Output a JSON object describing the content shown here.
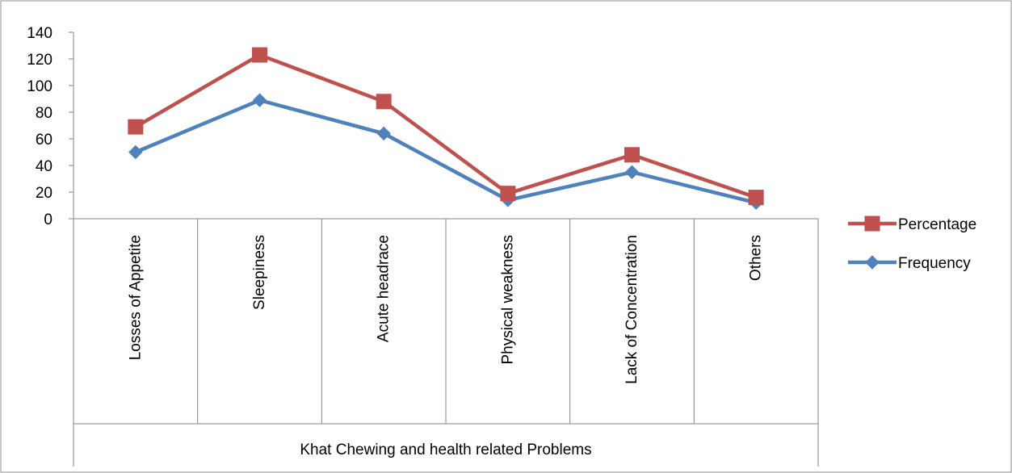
{
  "chart_data": {
    "type": "line",
    "categories": [
      "Losses of Appetite",
      "Sleepiness",
      "Acute headrace",
      "Physical weakness",
      "Lack of Concentration",
      "Others"
    ],
    "series": [
      {
        "name": "Percentage",
        "values": [
          69,
          123,
          88,
          19,
          48,
          16
        ],
        "color": "#c0504d",
        "marker": "square"
      },
      {
        "name": "Frequency",
        "values": [
          50,
          89,
          64,
          14,
          35,
          12
        ],
        "color": "#4f81bd",
        "marker": "diamond"
      }
    ],
    "xlabel": "Khat Chewing and health related Problems",
    "ylabel": "",
    "ylim": [
      0,
      140
    ],
    "yticks": [
      0,
      20,
      40,
      60,
      80,
      100,
      120,
      140
    ],
    "grid": false,
    "legend": "right"
  }
}
